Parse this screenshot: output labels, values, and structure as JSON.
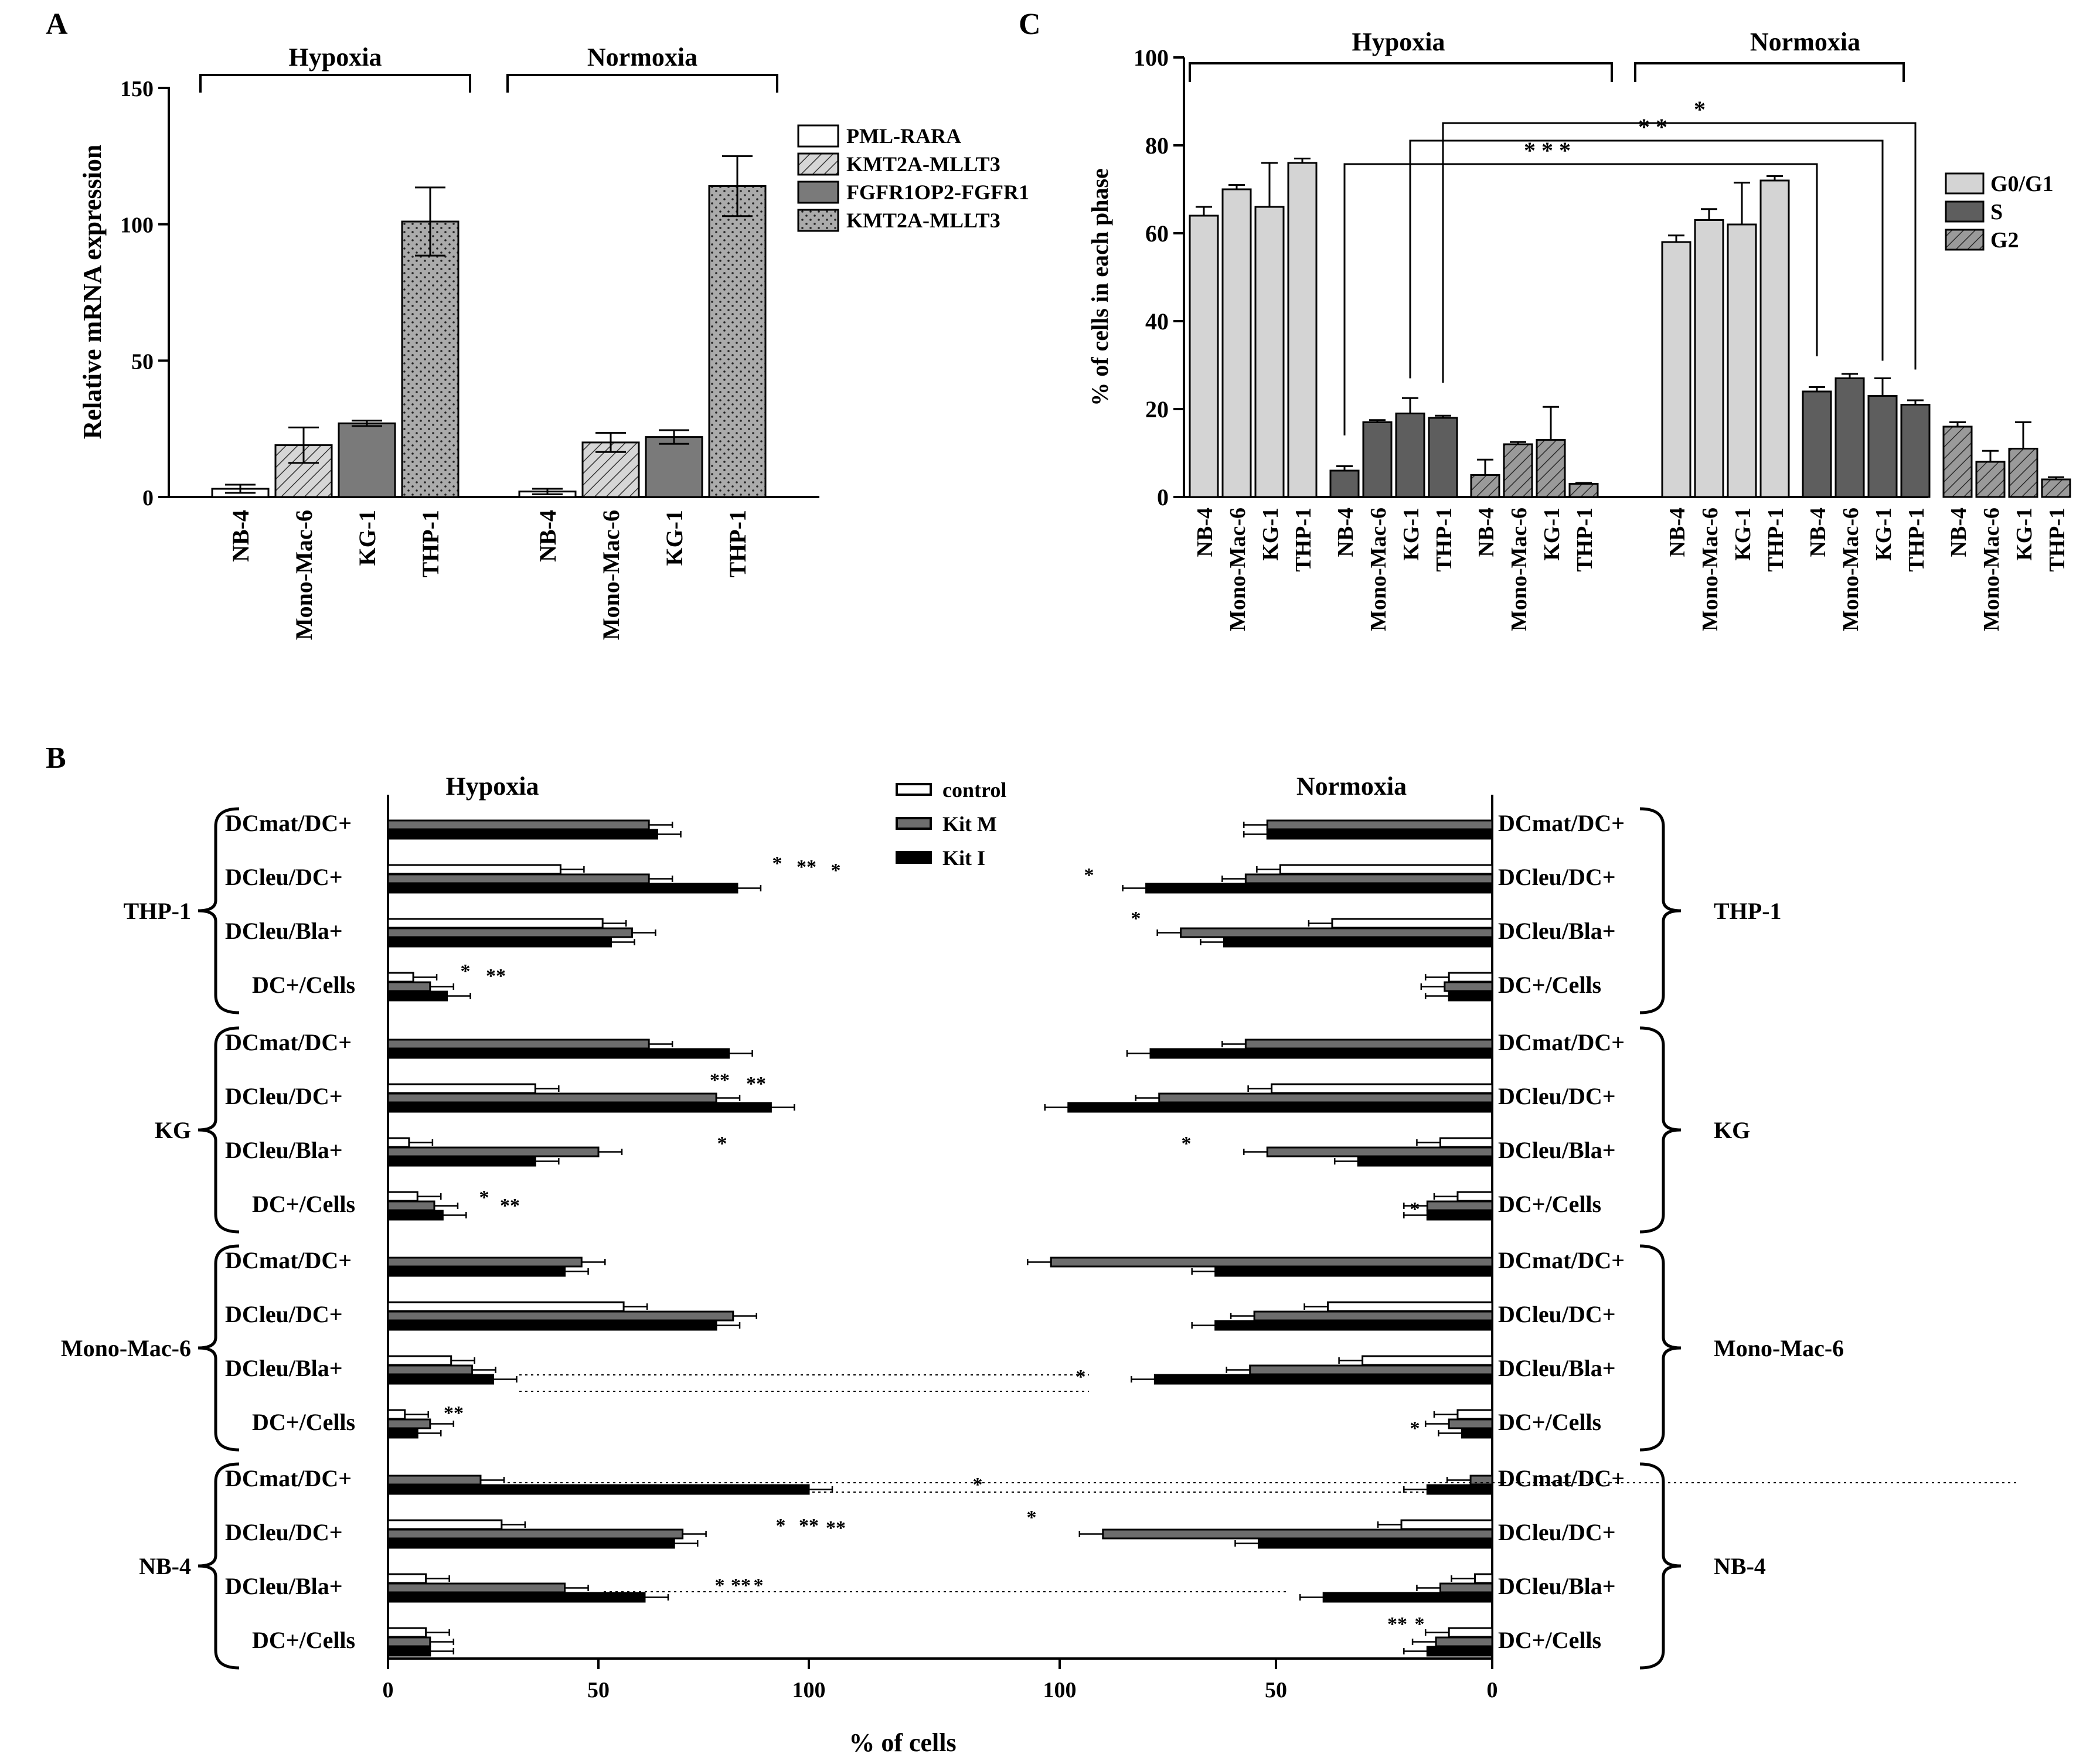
{
  "panel_labels": {
    "a": "A",
    "b": "B",
    "c": "C"
  },
  "chart_data": [
    {
      "panel": "A",
      "type": "bar",
      "ylabel": "Relative mRNA expression",
      "yticks": [
        "0",
        "50",
        "100",
        "150"
      ],
      "ylim": [
        0,
        150
      ],
      "categories": [
        "NB-4",
        "Mono-Mac-6",
        "KG-1",
        "THP-1"
      ],
      "groups": [
        {
          "name": "Hypoxia",
          "values": [
            3,
            19,
            27,
            101
          ],
          "errors": [
            1.5,
            6.5,
            1,
            12.5
          ]
        },
        {
          "name": "Normoxia",
          "values": [
            2,
            20,
            22,
            114
          ],
          "errors": [
            1,
            3.5,
            2.5,
            11
          ]
        }
      ],
      "legend": [
        "PML-RARA",
        "KMT2A-MLLT3",
        "FGFR1OP2-FGFR1",
        "KMT2A-MLLT3"
      ],
      "colors": [
        "#ffffff",
        "#d0d0d0",
        "#7a7a7a",
        "#a8a8a8"
      ]
    },
    {
      "panel": "C",
      "type": "bar",
      "ylabel": "% of cells in each phase",
      "yticks": [
        "0",
        "20",
        "40",
        "60",
        "80",
        "100"
      ],
      "ylim": [
        0,
        100
      ],
      "categories": [
        "NB-4",
        "Mono-Mac-6",
        "KG-1",
        "THP-1"
      ],
      "groups": [
        {
          "name": "Hypoxia",
          "phases": [
            {
              "phase": "G0/G1",
              "values": [
                64,
                70,
                66,
                76
              ],
              "errors": [
                2,
                1,
                10,
                1
              ]
            },
            {
              "phase": "S",
              "values": [
                6,
                17,
                19,
                18
              ],
              "errors": [
                1,
                0.5,
                3.5,
                0.5
              ]
            },
            {
              "phase": "G2",
              "values": [
                5,
                12,
                13,
                3
              ],
              "errors": [
                3.5,
                0.5,
                7.5,
                0.2
              ]
            }
          ]
        },
        {
          "name": "Normoxia",
          "phases": [
            {
              "phase": "G0/G1",
              "values": [
                58,
                63,
                62,
                72
              ],
              "errors": [
                1.5,
                2.5,
                9.5,
                1
              ]
            },
            {
              "phase": "S",
              "values": [
                24,
                27,
                23,
                21
              ],
              "errors": [
                1,
                1,
                4,
                1
              ]
            },
            {
              "phase": "G2",
              "values": [
                16,
                8,
                11,
                4
              ],
              "errors": [
                1,
                2.5,
                6,
                0.5
              ]
            }
          ]
        }
      ],
      "legend": [
        "G0/G1",
        "S",
        "G2"
      ],
      "significance": [
        "*",
        "* *",
        "* * *"
      ]
    },
    {
      "panel": "B",
      "type": "bar",
      "orientation": "horizontal",
      "xlabel": "% of  cells",
      "left_title": "Hypoxia",
      "right_title": "Normoxia",
      "xticks_left": [
        "0",
        "50",
        "100"
      ],
      "xticks_right": [
        "100",
        "50",
        "0"
      ],
      "xlim": [
        0,
        100
      ],
      "legend": [
        "control",
        "Kit M",
        "Kit I"
      ],
      "metrics": [
        "DCmat/DC+",
        "DCleu/DC+",
        "DCleu/Bla+",
        "DC+/Cells"
      ],
      "cell_lines": [
        {
          "name": "THP-1",
          "hypoxia": [
            [
              null,
              62,
              64
            ],
            [
              41,
              62,
              83
            ],
            [
              51,
              58,
              53
            ],
            [
              6,
              10,
              14
            ]
          ],
          "normoxia": [
            [
              null,
              52,
              52
            ],
            [
              49,
              57,
              80
            ],
            [
              37,
              72,
              62
            ],
            [
              10,
              11,
              10
            ]
          ]
        },
        {
          "name": "KG",
          "hypoxia": [
            [
              null,
              62,
              81
            ],
            [
              35,
              78,
              91
            ],
            [
              5,
              50,
              35
            ],
            [
              7,
              11,
              13
            ]
          ],
          "normoxia": [
            [
              null,
              57,
              79
            ],
            [
              51,
              77,
              98
            ],
            [
              12,
              52,
              31
            ],
            [
              8,
              15,
              15
            ]
          ]
        },
        {
          "name": "Mono-Mac-6",
          "hypoxia": [
            [
              null,
              46,
              42
            ],
            [
              56,
              82,
              78
            ],
            [
              15,
              20,
              25
            ],
            [
              4,
              10,
              7
            ]
          ],
          "normoxia": [
            [
              null,
              102,
              64
            ],
            [
              38,
              55,
              64
            ],
            [
              30,
              56,
              78
            ],
            [
              8,
              10,
              7
            ]
          ]
        },
        {
          "name": "NB-4",
          "hypoxia": [
            [
              null,
              22,
              100
            ],
            [
              27,
              70,
              68
            ],
            [
              9,
              42,
              61
            ],
            [
              9,
              10,
              10
            ]
          ],
          "normoxia": [
            [
              null,
              5,
              15
            ],
            [
              21,
              90,
              54
            ],
            [
              4,
              12,
              39
            ],
            [
              10,
              13,
              15
            ]
          ]
        }
      ],
      "stars": [
        "*",
        "**",
        "***",
        "****"
      ]
    }
  ]
}
